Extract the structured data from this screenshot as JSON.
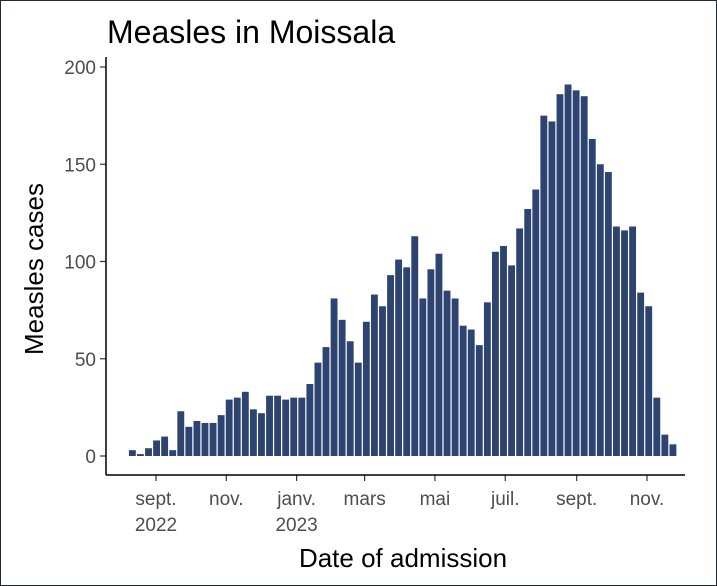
{
  "chart_data": {
    "type": "bar",
    "title": "Measles in Moissala",
    "xlabel": "Date of admission",
    "ylabel": "Measles cases",
    "bar_color": "#2e4470",
    "ylim": [
      0,
      200
    ],
    "y_ticks": [
      0,
      50,
      100,
      150,
      200
    ],
    "x_ticks": [
      {
        "date": "2022-09-01",
        "label": "sept.",
        "year": "2022"
      },
      {
        "date": "2022-11-01",
        "label": "nov.",
        "year": ""
      },
      {
        "date": "2023-01-01",
        "label": "janv.",
        "year": "2023"
      },
      {
        "date": "2023-03-01",
        "label": "mars",
        "year": ""
      },
      {
        "date": "2023-05-01",
        "label": "mai",
        "year": ""
      },
      {
        "date": "2023-07-01",
        "label": "juil.",
        "year": ""
      },
      {
        "date": "2023-09-01",
        "label": "sept.",
        "year": ""
      },
      {
        "date": "2023-11-01",
        "label": "nov.",
        "year": ""
      }
    ],
    "bin_width_days": 7,
    "x": [
      "2022-08-08",
      "2022-08-15",
      "2022-08-22",
      "2022-08-29",
      "2022-09-05",
      "2022-09-12",
      "2022-09-19",
      "2022-09-26",
      "2022-10-03",
      "2022-10-10",
      "2022-10-17",
      "2022-10-24",
      "2022-10-31",
      "2022-11-07",
      "2022-11-14",
      "2022-11-21",
      "2022-11-28",
      "2022-12-05",
      "2022-12-12",
      "2022-12-19",
      "2022-12-26",
      "2023-01-02",
      "2023-01-09",
      "2023-01-16",
      "2023-01-23",
      "2023-01-30",
      "2023-02-06",
      "2023-02-13",
      "2023-02-20",
      "2023-02-27",
      "2023-03-06",
      "2023-03-13",
      "2023-03-20",
      "2023-03-27",
      "2023-04-03",
      "2023-04-10",
      "2023-04-17",
      "2023-04-24",
      "2023-05-01",
      "2023-05-08",
      "2023-05-15",
      "2023-05-22",
      "2023-05-29",
      "2023-06-05",
      "2023-06-12",
      "2023-06-19",
      "2023-06-26",
      "2023-07-03",
      "2023-07-10",
      "2023-07-17",
      "2023-07-24",
      "2023-07-31",
      "2023-08-07",
      "2023-08-14",
      "2023-08-21",
      "2023-08-28",
      "2023-09-04",
      "2023-09-11",
      "2023-09-18",
      "2023-09-25",
      "2023-10-02",
      "2023-10-09",
      "2023-10-16",
      "2023-10-23",
      "2023-10-30",
      "2023-11-06",
      "2023-11-13",
      "2023-11-20"
    ],
    "values": [
      3,
      1,
      4,
      8,
      10,
      3,
      23,
      15,
      18,
      17,
      17,
      21,
      29,
      30,
      33,
      24,
      22,
      31,
      31,
      29,
      30,
      30,
      37,
      48,
      56,
      81,
      70,
      59,
      48,
      69,
      83,
      77,
      93,
      101,
      97,
      113,
      81,
      96,
      104,
      85,
      81,
      67,
      65,
      57,
      79,
      105,
      108,
      98,
      117,
      127,
      137,
      175,
      172,
      186,
      191,
      188,
      185,
      163,
      150,
      146,
      118,
      116,
      118,
      84,
      77,
      30,
      11,
      6
    ]
  }
}
